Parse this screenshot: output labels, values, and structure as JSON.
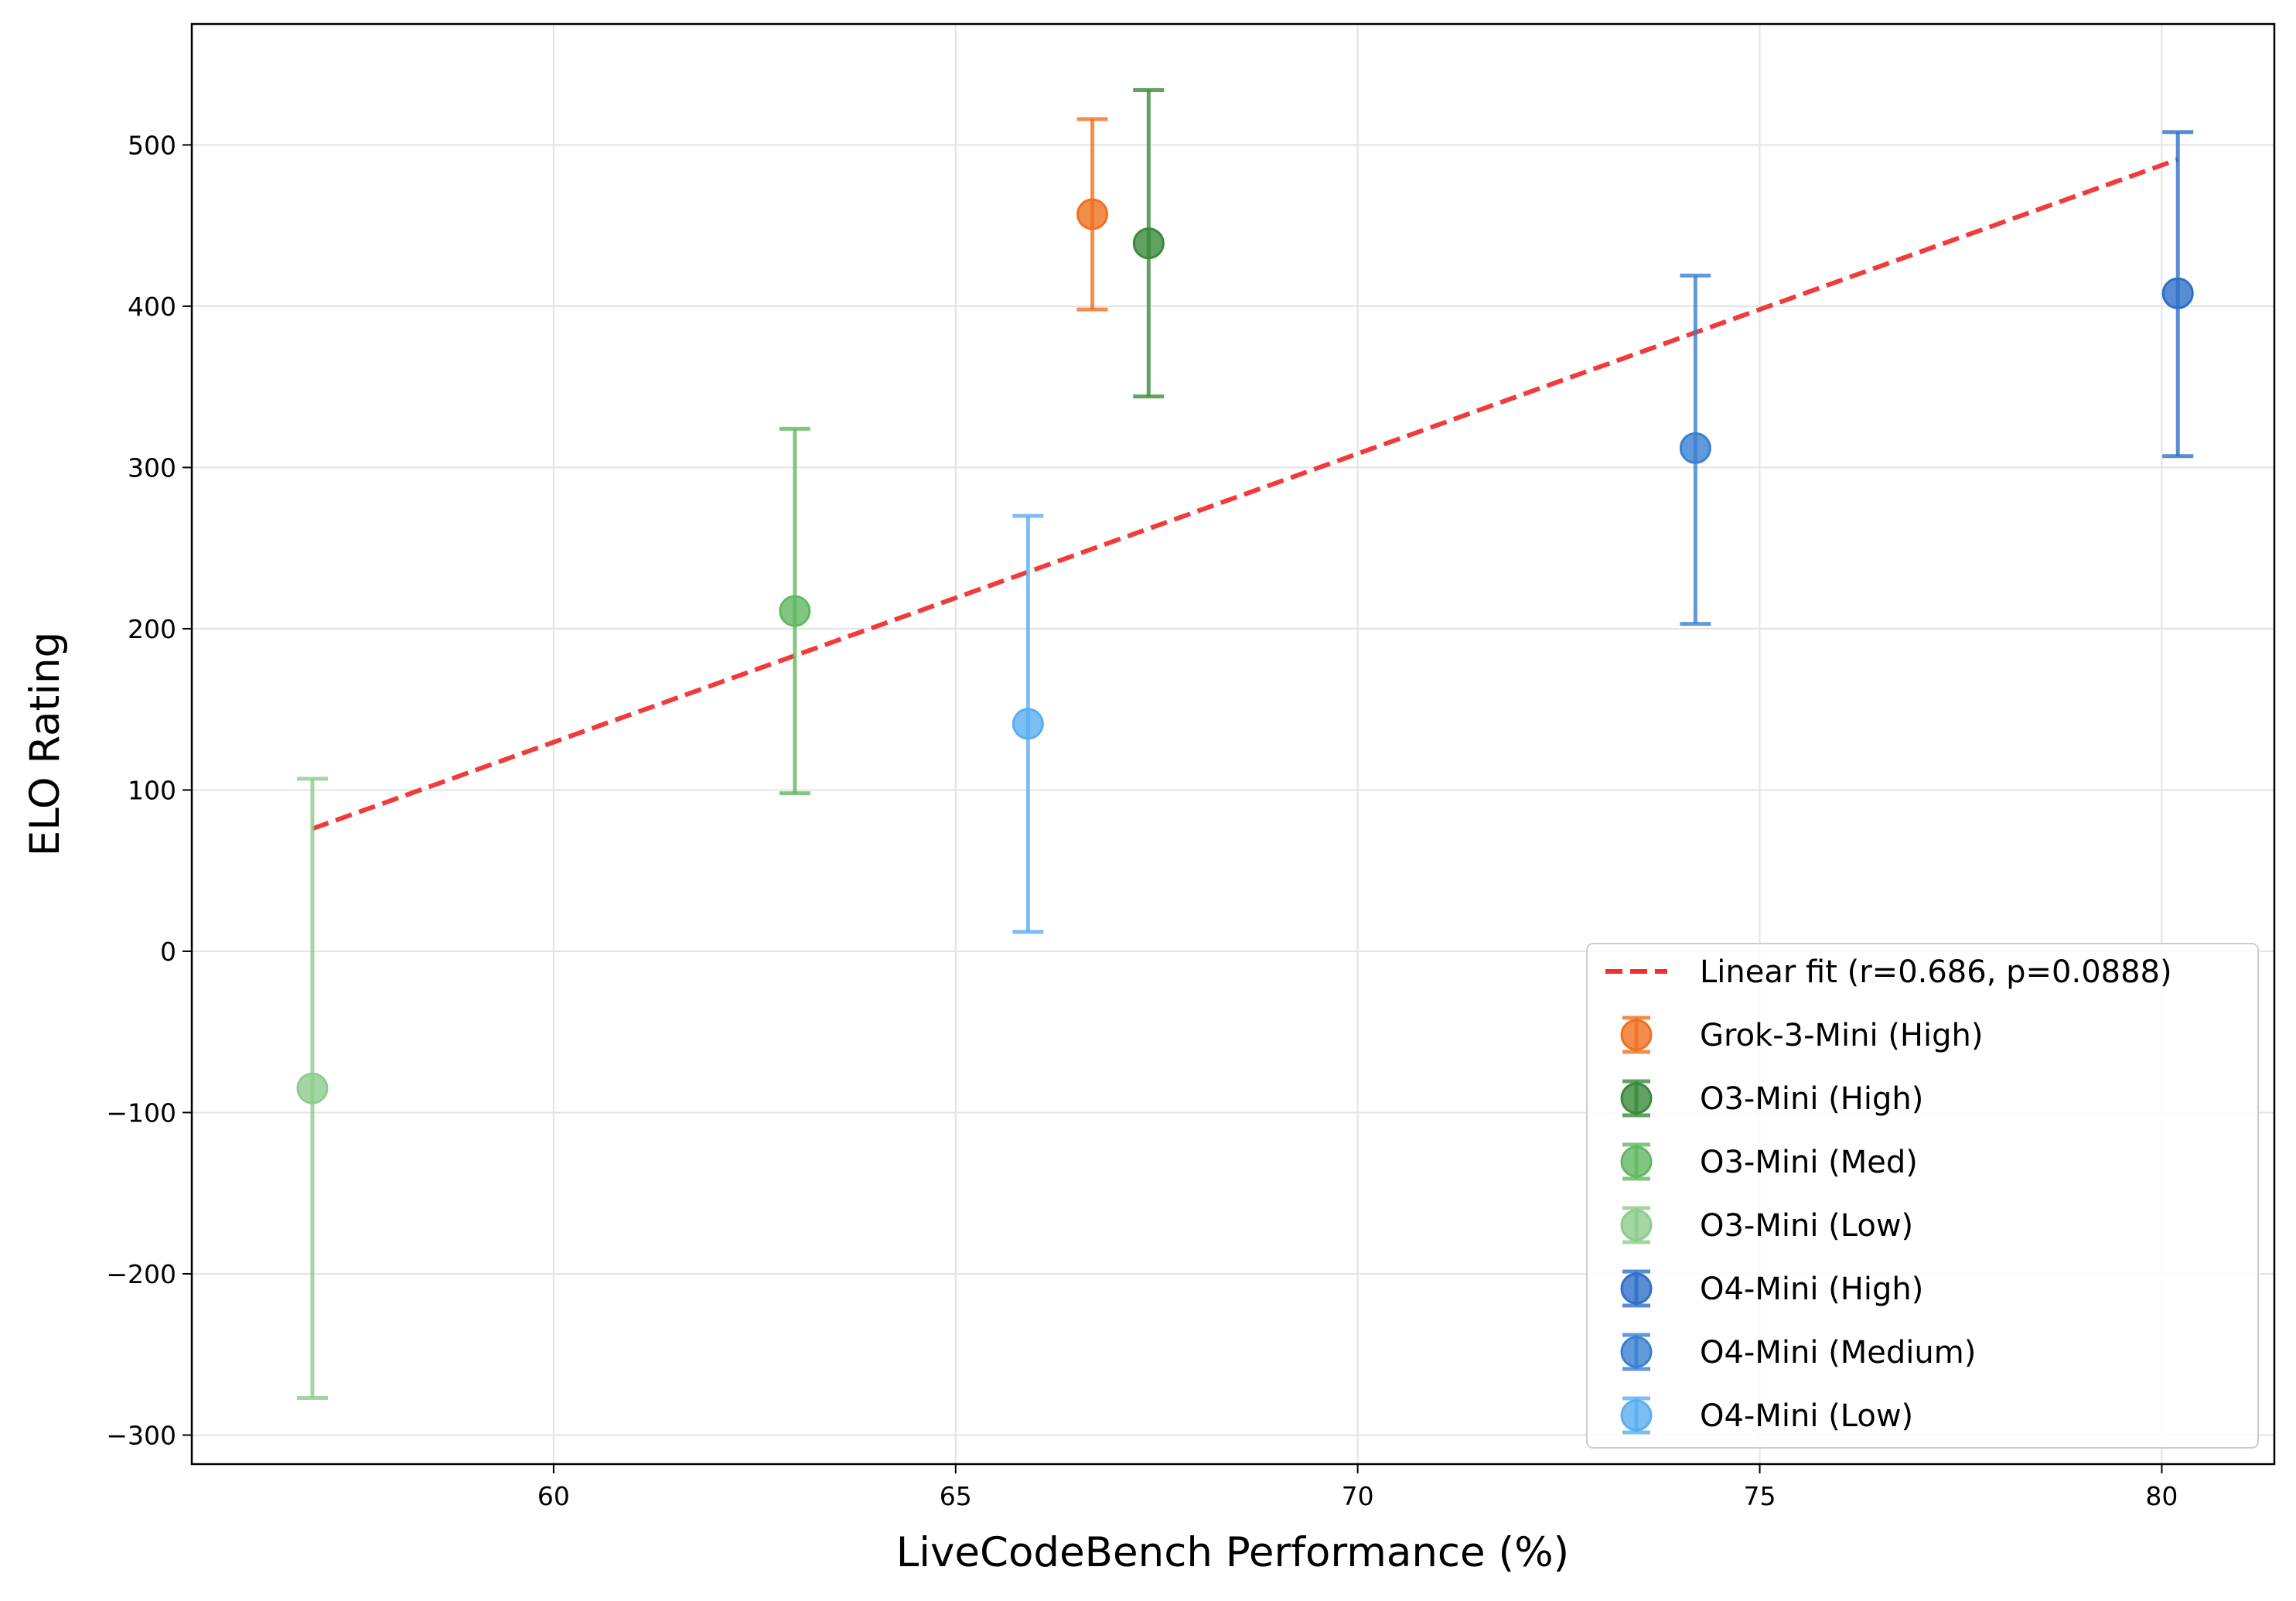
{
  "chart_data": {
    "type": "scatter",
    "xlabel": "LiveCodeBench Performance (%)",
    "ylabel": "ELO Rating",
    "xlim": [
      55.5,
      81.4
    ],
    "ylim": [
      -318,
      575
    ],
    "xticks": [
      60,
      65,
      70,
      75,
      80
    ],
    "xtick_labels": [
      "60",
      "65",
      "70",
      "75",
      "80"
    ],
    "yticks": [
      -300,
      -200,
      -100,
      0,
      100,
      200,
      300,
      400,
      500
    ],
    "ytick_labels": [
      "−300",
      "−200",
      "−100",
      "0",
      "100",
      "200",
      "300",
      "400",
      "500"
    ],
    "grid": true,
    "legend_position": "lower-right",
    "fit": {
      "label": "Linear fit (r=0.686, p=0.0888)",
      "color": "#f03030",
      "x": [
        57.0,
        80.2
      ],
      "y": [
        76,
        491
      ]
    },
    "series": [
      {
        "name": "Grok-3-Mini (High)",
        "color": "#f07020",
        "x": 66.7,
        "y": 457,
        "err_low": 398,
        "err_high": 516
      },
      {
        "name": "O3-Mini (High)",
        "color": "#3a8a3a",
        "x": 67.4,
        "y": 439,
        "err_low": 344,
        "err_high": 534
      },
      {
        "name": "O3-Mini (Med)",
        "color": "#60b860",
        "x": 63.0,
        "y": 211,
        "err_low": 98,
        "err_high": 324
      },
      {
        "name": "O3-Mini (Low)",
        "color": "#8ccc8c",
        "x": 57.0,
        "y": -85,
        "err_low": -277,
        "err_high": 107
      },
      {
        "name": "O4-Mini (High)",
        "color": "#2e6fc8",
        "x": 80.2,
        "y": 408,
        "err_low": 307,
        "err_high": 508
      },
      {
        "name": "O4-Mini (Medium)",
        "color": "#3a80d0",
        "x": 74.2,
        "y": 312,
        "err_low": 203,
        "err_high": 419
      },
      {
        "name": "O4-Mini (Low)",
        "color": "#5aaef0",
        "x": 65.9,
        "y": 141,
        "err_low": 12,
        "err_high": 270
      }
    ]
  }
}
